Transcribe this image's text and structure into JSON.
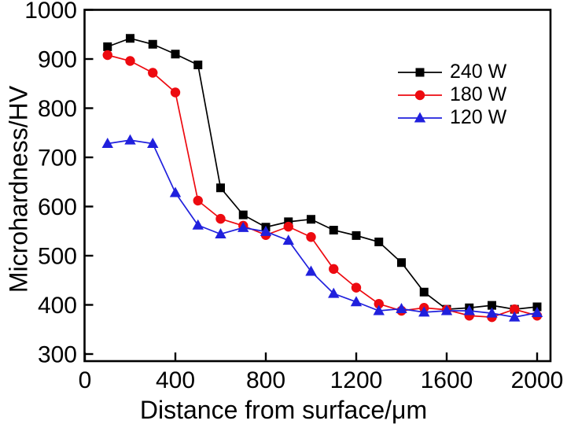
{
  "figure_background": "#ffffff",
  "axes": {
    "x_ticks": [
      0,
      400,
      800,
      1200,
      1600,
      2000
    ],
    "y_ticks": [
      300,
      400,
      500,
      600,
      700,
      800,
      900,
      1000
    ],
    "frame_color": "#000000"
  },
  "chart_data": {
    "type": "line",
    "title": "",
    "xlabel": "Distance from surface/μm",
    "ylabel": "Microhardness/HV",
    "xlim": [
      0,
      2060
    ],
    "ylim": [
      300,
      1000
    ],
    "grid": false,
    "legend_position": "upper-right-inside",
    "x": [
      100,
      200,
      300,
      400,
      500,
      600,
      700,
      800,
      900,
      1000,
      1100,
      1200,
      1300,
      1400,
      1500,
      1600,
      1700,
      1800,
      1900,
      2000
    ],
    "series": [
      {
        "name": "240 W",
        "color": "#000000",
        "marker": "square",
        "values": [
          925,
          942,
          930,
          910,
          888,
          638,
          583,
          558,
          569,
          574,
          552,
          541,
          528,
          486,
          426,
          391,
          394,
          399,
          391,
          396
        ]
      },
      {
        "name": "180 W",
        "color": "#ed0a10",
        "marker": "circle",
        "values": [
          908,
          896,
          872,
          832,
          612,
          575,
          561,
          542,
          559,
          538,
          473,
          435,
          402,
          388,
          394,
          390,
          378,
          375,
          391,
          378
        ]
      },
      {
        "name": "120 W",
        "color": "#2020dd",
        "marker": "triangle",
        "values": [
          728,
          735,
          728,
          628,
          562,
          544,
          557,
          549,
          531,
          468,
          423,
          406,
          388,
          392,
          385,
          388,
          388,
          383,
          375,
          384
        ]
      }
    ]
  }
}
